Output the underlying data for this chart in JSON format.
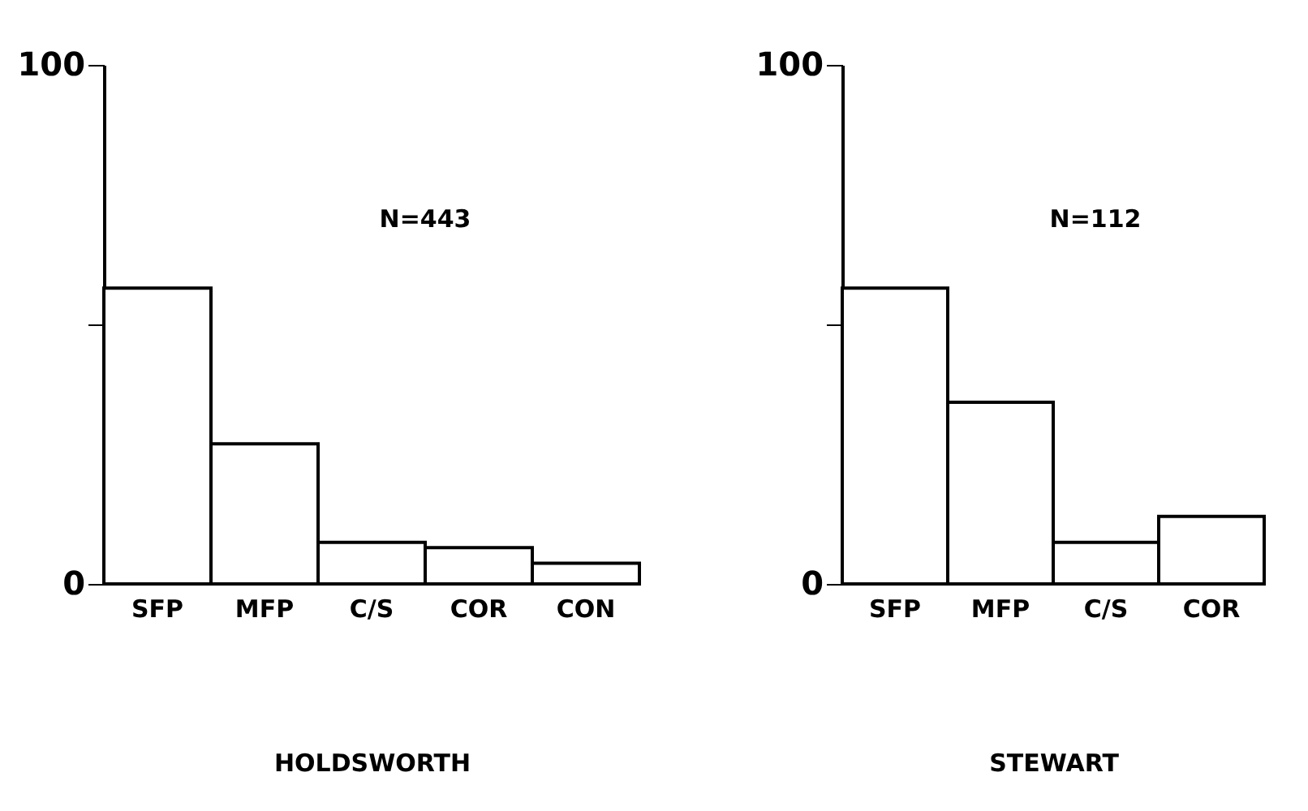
{
  "chart_data": [
    {
      "type": "bar",
      "categories": [
        "SFP",
        "MFP",
        "C/S",
        "COR",
        "CON"
      ],
      "color": "#ffffff",
      "values": [
        57,
        27,
        8,
        7,
        4
      ],
      "ylim": [
        0,
        100
      ],
      "yticks": [
        0,
        {
          "value": 50,
          "label": null
        },
        100
      ],
      "xlabel": "HOLDSWORTH",
      "annotations": [
        "N=443"
      ],
      "grid": false
    },
    {
      "type": "bar",
      "categories": [
        "SFP",
        "MFP",
        "C/S",
        "COR"
      ],
      "color": "#ffffff",
      "values": [
        57,
        35,
        8,
        13
      ],
      "ylim": [
        0,
        100
      ],
      "yticks": [
        0,
        {
          "value": 50,
          "label": null
        },
        100
      ],
      "xlabel": "STEWART",
      "annotations": [
        "N=112"
      ],
      "grid": false
    }
  ]
}
